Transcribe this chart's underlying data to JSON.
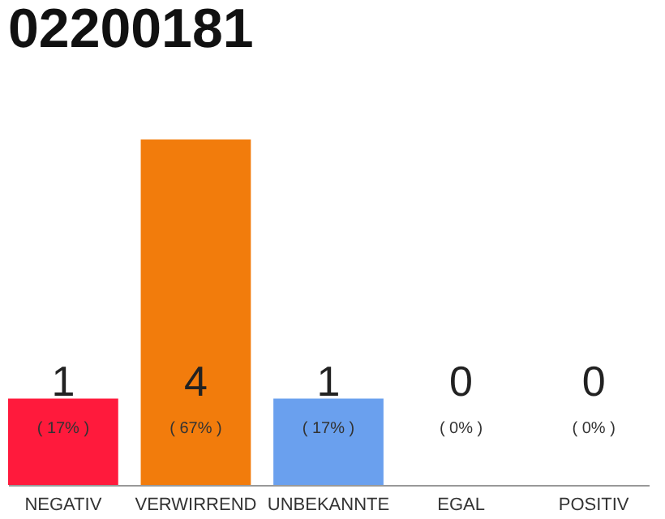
{
  "chart_data": {
    "type": "bar",
    "title": "02200181",
    "categories": [
      "NEGATIV",
      "VERWIRREND",
      "UNBEKANNTE",
      "EGAL",
      "POSITIV"
    ],
    "values": [
      1,
      4,
      1,
      0,
      0
    ],
    "colors": [
      "#ff1a3c",
      "#f27c0c",
      "#6aa0ee",
      "#cccccc",
      "#cccccc"
    ],
    "value_labels": [
      "1",
      "4",
      "1",
      "0",
      "0"
    ],
    "annotations": [
      "( 17% )",
      "( 67% )",
      "( 17% )",
      "( 0% )",
      "( 0% )"
    ],
    "grid": false
  }
}
